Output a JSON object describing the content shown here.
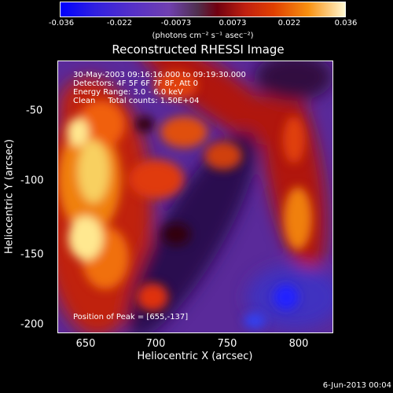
{
  "colorbar": {
    "ticks": [
      "-0.036",
      "-0.022",
      "-0.0073",
      "0.0073",
      "0.022",
      "0.036"
    ],
    "unit_label": "(photons cm⁻² s⁻¹ asec⁻²)"
  },
  "title": "Reconstructed RHESSI Image",
  "info": {
    "time": "30-May-2003 09:16:16.000 to 09:19:30.000",
    "detectors": "Detectors: 4F 5F 6F 7F 8F, Att 0",
    "energy": "Energy Range: 3.0 - 6.0 keV",
    "clean": "Clean     Total counts: 1.50E+04",
    "peak": "Position of Peak = [655,-137]"
  },
  "axes": {
    "xlabel": "Heliocentric X (arcsec)",
    "ylabel": "Heliocentric Y (arcsec)",
    "xticks": [
      "650",
      "700",
      "750",
      "800"
    ],
    "yticks": [
      "-50",
      "-100",
      "-150",
      "-200"
    ]
  },
  "footer_date": "6-Jun-2013 00:04"
}
